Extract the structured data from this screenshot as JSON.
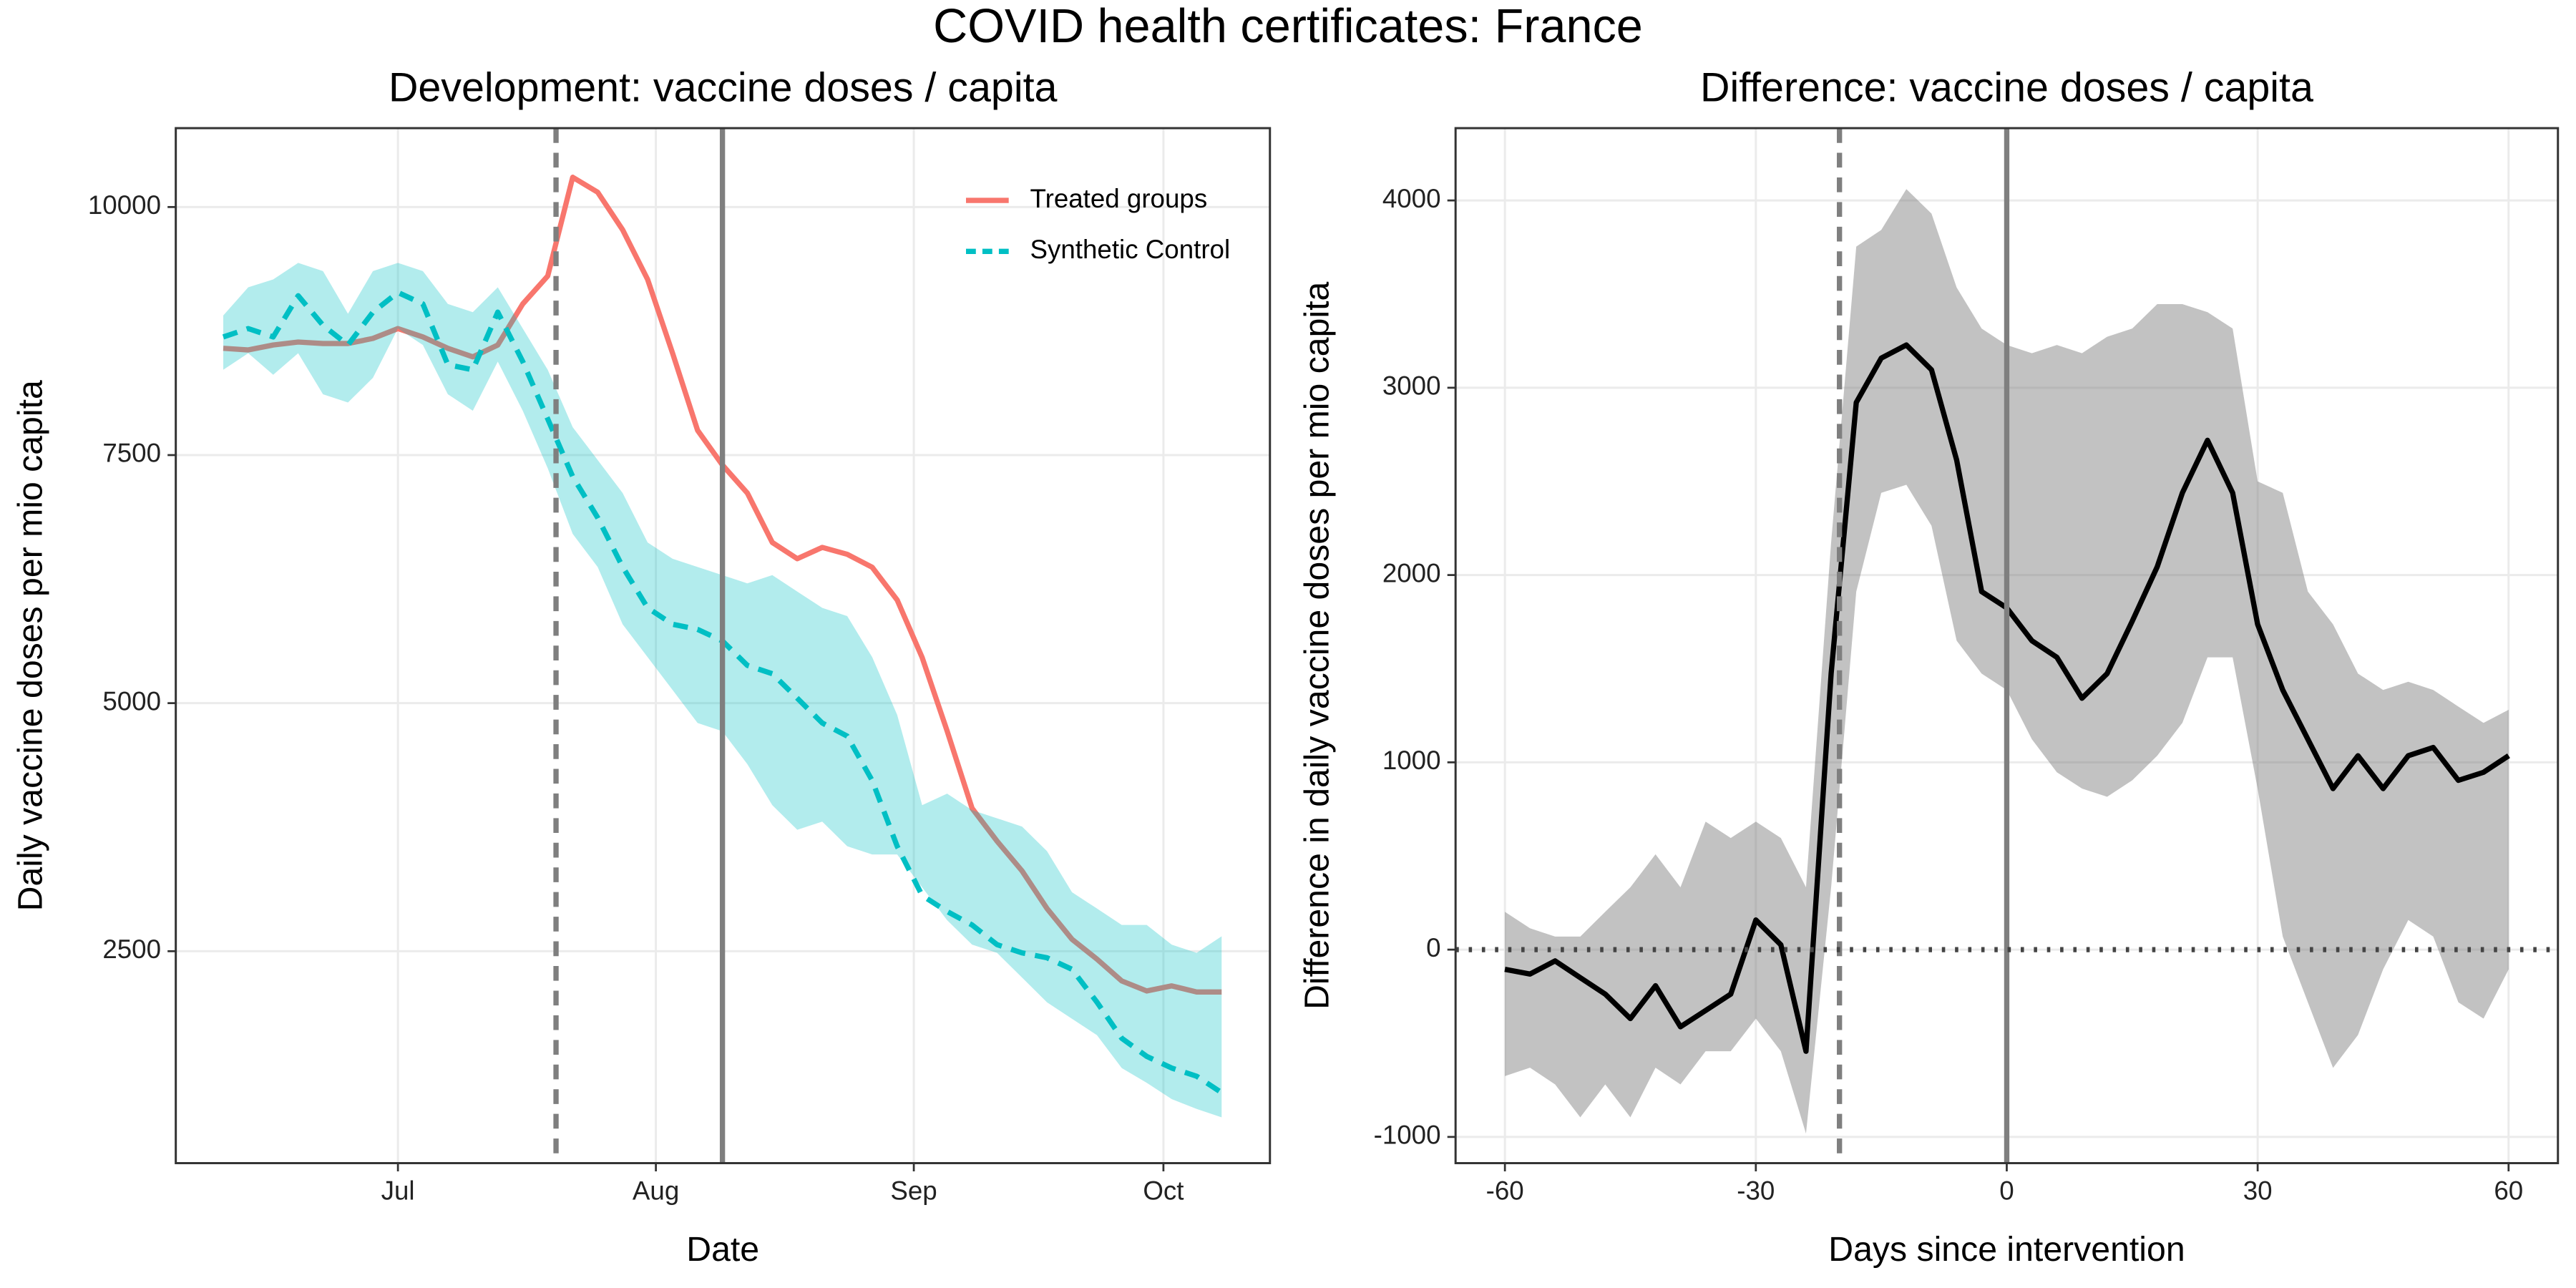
{
  "title": "COVID health certificates: France",
  "chart_data": [
    {
      "type": "line",
      "title": "Development: vaccine doses / capita",
      "xlabel": "Date",
      "ylabel": "Daily vaccine doses per mio capita",
      "x": [
        161,
        164,
        167,
        170,
        173,
        176,
        179,
        182,
        185,
        188,
        191,
        194,
        197,
        200,
        203,
        206,
        209,
        212,
        215,
        218,
        221,
        224,
        227,
        230,
        233,
        236,
        239,
        242,
        245,
        248,
        251,
        254,
        257,
        260,
        263,
        266,
        269,
        272,
        275,
        278,
        281
      ],
      "xlim": [
        155.3,
        286.8
      ],
      "xticks": [
        {
          "value": 182,
          "label": "Jul"
        },
        {
          "value": 213,
          "label": "Aug"
        },
        {
          "value": 244,
          "label": "Sep"
        },
        {
          "value": 274,
          "label": "Oct"
        }
      ],
      "ylim": [
        364,
        10795
      ],
      "yticks": [
        2500,
        5000,
        7500,
        10000
      ],
      "grid": true,
      "legend": "top-right",
      "vlines": [
        {
          "x": 201,
          "style": "dashed"
        },
        {
          "x": 221,
          "style": "solid"
        }
      ],
      "series": [
        {
          "name": "Treated groups",
          "color": "#F8766D",
          "linestyle": "solid",
          "values": [
            8576,
            8560,
            8610,
            8640,
            8625,
            8625,
            8675,
            8775,
            8690,
            8576,
            8490,
            8610,
            9023,
            9305,
            10300,
            10150,
            9770,
            9270,
            8526,
            7750,
            7400,
            7118,
            6620,
            6456,
            6570,
            6500,
            6370,
            6040,
            5460,
            4720,
            3940,
            3610,
            3310,
            2930,
            2620,
            2420,
            2200,
            2100,
            2150,
            2090,
            2090
          ]
        },
        {
          "name": "Synthetic Control",
          "color": "#00BFC4",
          "linestyle": "dashed",
          "values": [
            8690,
            8775,
            8690,
            9106,
            8808,
            8610,
            8940,
            9139,
            9023,
            8410,
            8360,
            8940,
            8443,
            7864,
            7284,
            6870,
            6373,
            5960,
            5794,
            5744,
            5628,
            5380,
            5297,
            5049,
            4800,
            4668,
            4220,
            3558,
            3061,
            2900,
            2765,
            2566,
            2484,
            2434,
            2318,
            1987,
            1622,
            1440,
            1323,
            1240,
            1074
          ],
          "band_upper": [
            8907,
            9190,
            9270,
            9437,
            9354,
            8924,
            9354,
            9437,
            9354,
            9023,
            8940,
            9190,
            8775,
            8360,
            7781,
            7450,
            7118,
            6620,
            6456,
            6373,
            6290,
            6207,
            6290,
            6124,
            5960,
            5877,
            5463,
            4883,
            3972,
            4088,
            3922,
            3840,
            3757,
            3509,
            3094,
            2930,
            2764,
            2764,
            2566,
            2484,
            2650
          ],
          "band_lower": [
            8360,
            8526,
            8310,
            8526,
            8112,
            8030,
            8278,
            8775,
            8610,
            8112,
            7947,
            8443,
            7947,
            7367,
            6705,
            6373,
            5794,
            5463,
            5132,
            4800,
            4717,
            4386,
            3972,
            3724,
            3807,
            3558,
            3475,
            3475,
            3144,
            2813,
            2566,
            2484,
            2235,
            1985,
            1820,
            1654,
            1323,
            1174,
            1010,
            910,
            826
          ]
        }
      ]
    },
    {
      "type": "line",
      "title": "Difference: vaccine doses / capita",
      "xlabel": "Days since intervention",
      "ylabel": "Difference in daily vaccine doses per mio capita",
      "x": [
        -60,
        -57,
        -54,
        -51,
        -48,
        -45,
        -42,
        -39,
        -36,
        -33,
        -30,
        -27,
        -24,
        -21,
        -18,
        -15,
        -12,
        -9,
        -6,
        -3,
        0,
        3,
        6,
        9,
        12,
        15,
        18,
        21,
        24,
        27,
        30,
        33,
        36,
        39,
        42,
        45,
        48,
        51,
        54,
        57,
        60
      ],
      "xlim": [
        -65.9,
        65.9
      ],
      "xticks": [
        -60,
        -30,
        0,
        30,
        60
      ],
      "ylim": [
        -1140,
        4386
      ],
      "yticks": [
        -1000,
        0,
        1000,
        2000,
        3000,
        4000
      ],
      "grid": true,
      "vlines": [
        {
          "x": -20,
          "style": "dashed"
        },
        {
          "x": 0,
          "style": "solid"
        }
      ],
      "hlines": [
        {
          "y": 0,
          "style": "dotted"
        }
      ],
      "series": [
        {
          "color": "#000000",
          "linestyle": "solid",
          "values": [
            -105,
            -130,
            -60,
            -150,
            -237,
            -368,
            -193,
            -412,
            -325,
            -237,
            158,
            26,
            -543,
            1474,
            2921,
            3158,
            3228,
            3096,
            2614,
            1912,
            1825,
            1649,
            1561,
            1342,
            1474,
            1754,
            2044,
            2439,
            2719,
            2439,
            1737,
            1386,
            1123,
            860,
            1035,
            860,
            1035,
            1079,
            904,
            947,
            1035
          ],
          "band_upper": [
            202,
            114,
            70,
            70,
            202,
            333,
            509,
            333,
            684,
            596,
            684,
            596,
            333,
            2175,
            3754,
            3842,
            4061,
            3930,
            3535,
            3316,
            3228,
            3184,
            3228,
            3184,
            3272,
            3316,
            3447,
            3447,
            3404,
            3316,
            2500,
            2439,
            1912,
            1737,
            1474,
            1386,
            1430,
            1386,
            1298,
            1211,
            1281
          ],
          "band_lower": [
            -675,
            -630,
            -720,
            -895,
            -720,
            -895,
            -630,
            -720,
            -543,
            -543,
            -368,
            -543,
            -982,
            333,
            1912,
            2439,
            2482,
            2263,
            1649,
            1474,
            1386,
            1123,
            947,
            860,
            816,
            904,
            1035,
            1211,
            1561,
            1561,
            860,
            70,
            -281,
            -631,
            -456,
            -105,
            158,
            70,
            -281,
            -368,
            -105
          ]
        }
      ]
    }
  ]
}
